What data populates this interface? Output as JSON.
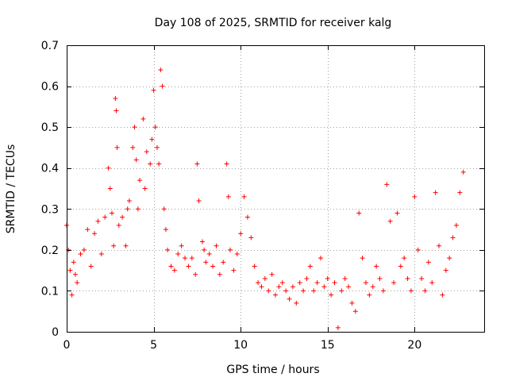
{
  "chart_data": {
    "type": "scatter",
    "title": "Day 108 of 2025, SRMTID for receiver kalg",
    "xlabel": "GPS time / hours",
    "ylabel": "SRMTID / TECUs",
    "xlim": [
      0,
      24
    ],
    "ylim": [
      0,
      0.7
    ],
    "x_ticks": [
      0,
      5,
      10,
      15,
      20
    ],
    "x_tick_labels": [
      "0",
      "5",
      "10",
      "15",
      "20"
    ],
    "y_ticks": [
      0,
      0.1,
      0.2,
      0.3,
      0.4,
      0.5,
      0.6,
      0.7
    ],
    "y_tick_labels": [
      "0",
      "0.1",
      "0.2",
      "0.3",
      "0.4",
      "0.5",
      "0.6",
      "0.7"
    ],
    "grid": true,
    "marker": "plus",
    "color": "#ff0000",
    "series": [
      {
        "name": "SRMTID",
        "x": [
          0.0,
          0.1,
          0.2,
          0.3,
          0.4,
          0.5,
          0.6,
          0.8,
          1.0,
          1.2,
          1.4,
          1.6,
          1.8,
          2.0,
          2.2,
          2.4,
          2.5,
          2.6,
          2.7,
          2.8,
          2.85,
          2.9,
          3.0,
          3.2,
          3.4,
          3.5,
          3.6,
          3.8,
          3.9,
          4.0,
          4.1,
          4.2,
          4.4,
          4.5,
          4.6,
          4.8,
          4.9,
          5.0,
          5.1,
          5.2,
          5.3,
          5.4,
          5.5,
          5.6,
          5.7,
          5.8,
          6.0,
          6.2,
          6.4,
          6.6,
          6.8,
          7.0,
          7.2,
          7.4,
          7.5,
          7.6,
          7.8,
          7.9,
          8.0,
          8.2,
          8.4,
          8.6,
          8.8,
          9.0,
          9.2,
          9.3,
          9.4,
          9.6,
          9.8,
          10.0,
          10.2,
          10.4,
          10.6,
          10.8,
          11.0,
          11.2,
          11.4,
          11.6,
          11.8,
          12.0,
          12.2,
          12.4,
          12.6,
          12.8,
          13.0,
          13.2,
          13.4,
          13.6,
          13.8,
          14.0,
          14.2,
          14.4,
          14.6,
          14.8,
          15.0,
          15.2,
          15.4,
          15.6,
          15.8,
          16.0,
          16.2,
          16.4,
          16.6,
          16.8,
          17.0,
          17.2,
          17.4,
          17.6,
          17.8,
          18.0,
          18.2,
          18.4,
          18.6,
          18.8,
          19.0,
          19.2,
          19.4,
          19.6,
          19.8,
          20.0,
          20.2,
          20.4,
          20.6,
          20.8,
          21.0,
          21.2,
          21.4,
          21.6,
          21.8,
          22.0,
          22.2,
          22.4,
          22.6,
          22.8
        ],
        "y": [
          0.26,
          0.2,
          0.15,
          0.09,
          0.17,
          0.14,
          0.12,
          0.19,
          0.2,
          0.25,
          0.16,
          0.24,
          0.27,
          0.19,
          0.28,
          0.4,
          0.35,
          0.29,
          0.21,
          0.57,
          0.54,
          0.45,
          0.26,
          0.28,
          0.21,
          0.3,
          0.32,
          0.45,
          0.5,
          0.42,
          0.3,
          0.37,
          0.52,
          0.35,
          0.44,
          0.41,
          0.47,
          0.59,
          0.5,
          0.45,
          0.41,
          0.64,
          0.6,
          0.3,
          0.25,
          0.2,
          0.16,
          0.15,
          0.19,
          0.21,
          0.18,
          0.16,
          0.18,
          0.14,
          0.41,
          0.32,
          0.22,
          0.2,
          0.17,
          0.19,
          0.16,
          0.21,
          0.14,
          0.17,
          0.41,
          0.33,
          0.2,
          0.15,
          0.19,
          0.24,
          0.33,
          0.28,
          0.23,
          0.16,
          0.12,
          0.11,
          0.13,
          0.1,
          0.14,
          0.09,
          0.11,
          0.12,
          0.1,
          0.08,
          0.11,
          0.07,
          0.12,
          0.1,
          0.13,
          0.16,
          0.1,
          0.12,
          0.18,
          0.11,
          0.13,
          0.09,
          0.12,
          0.01,
          0.1,
          0.13,
          0.11,
          0.07,
          0.05,
          0.29,
          0.18,
          0.12,
          0.09,
          0.11,
          0.16,
          0.13,
          0.1,
          0.36,
          0.27,
          0.12,
          0.29,
          0.16,
          0.18,
          0.13,
          0.1,
          0.33,
          0.2,
          0.13,
          0.1,
          0.17,
          0.12,
          0.34,
          0.21,
          0.09,
          0.15,
          0.18,
          0.23,
          0.26,
          0.34,
          0.39
        ]
      }
    ]
  }
}
